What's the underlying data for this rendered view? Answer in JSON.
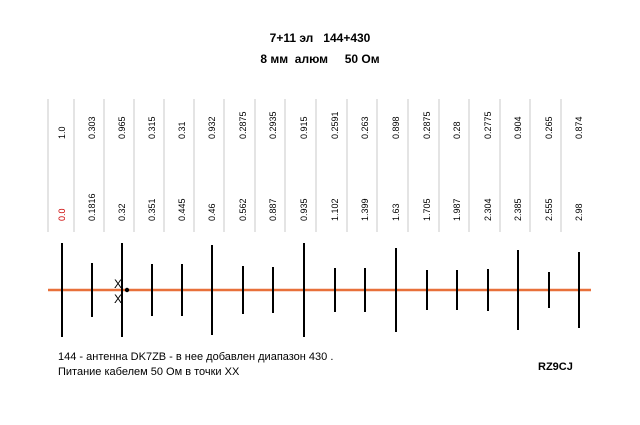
{
  "title_line1": "7+11 эл   144+430",
  "title_line2": "8 мм  алюм     50 Ом",
  "spacing_labels": [
    "1.0",
    "0.303",
    "0.965",
    "0.315",
    "0.31",
    "0.932",
    "0.2875",
    "0.2935",
    "0.915",
    "0.2591",
    "0.263",
    "0.898",
    "0.2875",
    "0.28",
    "0.2775",
    "0.904",
    "0.265",
    "0.874"
  ],
  "position_labels": [
    "0.0",
    "0.1816",
    "0.32",
    "0.351",
    "0.445",
    "0.46",
    "0.562",
    "0.887",
    "0.935",
    "1.102",
    "1.399",
    "1.63",
    "1.705",
    "1.987",
    "2.304",
    "2.385",
    "2.555",
    "2.98"
  ],
  "feed_marks": [
    "X",
    "X"
  ],
  "note_line1": "144 - антенна DK7ZB - в нее добавлен диапазон 430 .",
  "note_line2": "Питание кабелем 50 Ом в точки ХХ",
  "author": "RZ9CJ",
  "colors": {
    "boom": "#e8703a",
    "zero_label": "#cc0000",
    "grid_line": "#c8c8c8",
    "element": "#000000"
  }
}
